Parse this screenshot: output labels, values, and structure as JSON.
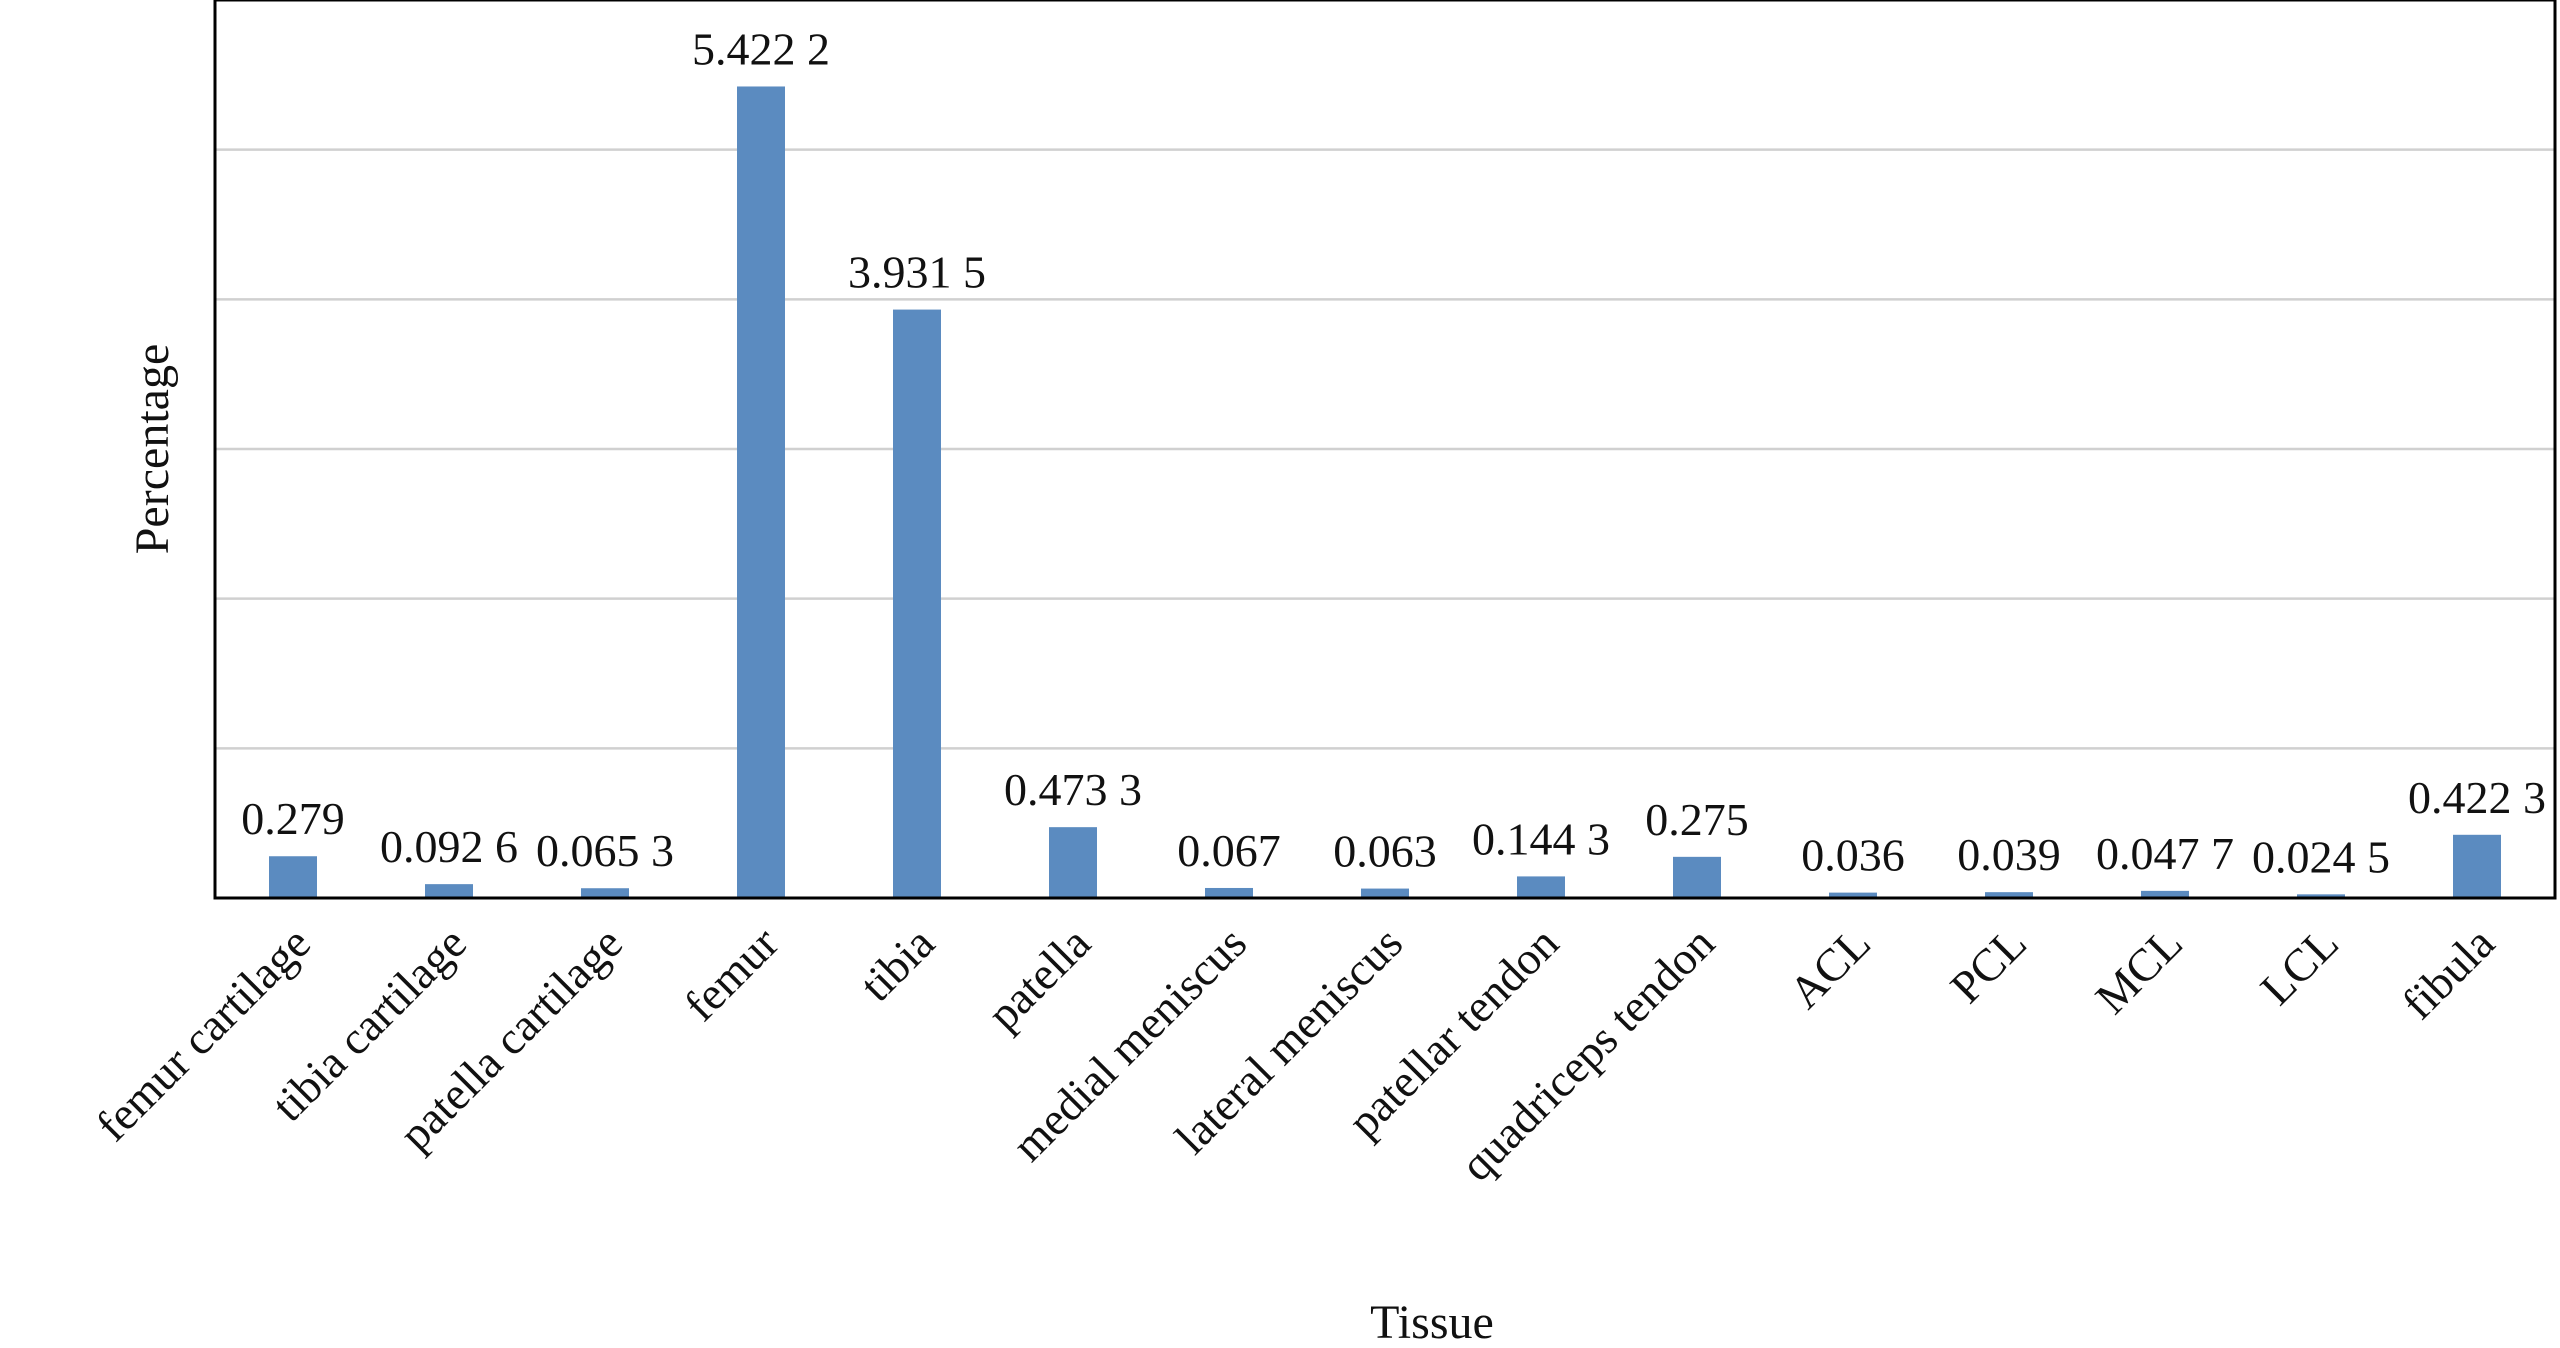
{
  "chart_data": {
    "type": "bar",
    "xlabel": "Tissue",
    "ylabel": "Percentage",
    "ylim": [
      0,
      6
    ],
    "grid": "horizontal",
    "legend": "none",
    "bar_color": "#5b8bc0",
    "categories": [
      "femur cartilage",
      "tibia cartilage",
      "patella cartilage",
      "femur",
      "tibia",
      "patella",
      "medial meniscus",
      "lateral meniscus",
      "patellar tendon",
      "quadriceps tendon",
      "ACL",
      "PCL",
      "MCL",
      "LCL",
      "fibula"
    ],
    "values": [
      0.279,
      0.0926,
      0.0653,
      5.4222,
      3.9315,
      0.4733,
      0.067,
      0.063,
      0.1443,
      0.275,
      0.036,
      0.039,
      0.0477,
      0.0245,
      0.4223
    ],
    "value_labels": [
      "0.279",
      "0.092 6",
      "0.065 3",
      "5.422 2",
      "3.931 5",
      "0.473 3",
      "0.067",
      "0.063",
      "0.144 3",
      "0.275",
      "0.036",
      "0.039",
      "0.047 7",
      "0.024 5",
      "0.422 3"
    ]
  }
}
